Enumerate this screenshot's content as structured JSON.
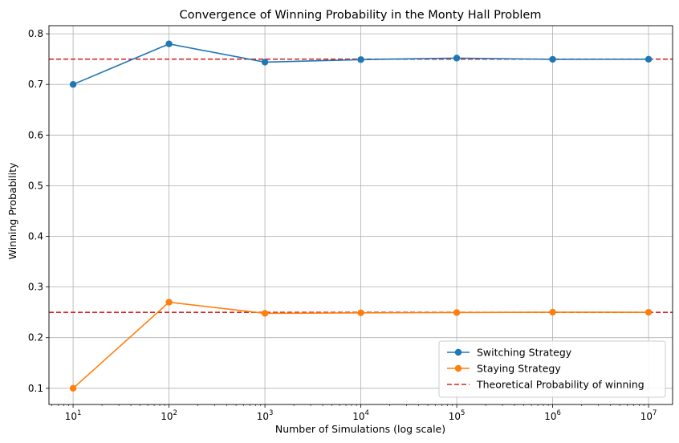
{
  "chart_data": {
    "type": "line",
    "title": "Convergence of Winning Probability in the Monty Hall Problem",
    "xlabel": "Number of Simulations (log scale)",
    "ylabel": "Winning Probability",
    "xscale": "log",
    "xlim": [
      5.6,
      17800000
    ],
    "ylim": [
      0.068,
      0.816
    ],
    "x": [
      10,
      100,
      1000,
      10000,
      100000,
      1000000,
      10000000
    ],
    "xtick_labels": [
      {
        "base": "10",
        "exp": "1"
      },
      {
        "base": "10",
        "exp": "2"
      },
      {
        "base": "10",
        "exp": "3"
      },
      {
        "base": "10",
        "exp": "4"
      },
      {
        "base": "10",
        "exp": "5"
      },
      {
        "base": "10",
        "exp": "6"
      },
      {
        "base": "10",
        "exp": "7"
      }
    ],
    "yticks": [
      0.1,
      0.2,
      0.3,
      0.4,
      0.5,
      0.6,
      0.7,
      0.8
    ],
    "ytick_labels": [
      "0.1",
      "0.2",
      "0.3",
      "0.4",
      "0.5",
      "0.6",
      "0.7",
      "0.8"
    ],
    "series": [
      {
        "name": "Switching Strategy",
        "color": "#1f77b4",
        "values": [
          0.7,
          0.78,
          0.744,
          0.749,
          0.752,
          0.7495,
          0.7497
        ]
      },
      {
        "name": "Staying Strategy",
        "color": "#ff7f0e",
        "values": [
          0.1,
          0.27,
          0.248,
          0.249,
          0.2495,
          0.2502,
          0.25
        ]
      }
    ],
    "reference_lines": [
      {
        "name": "Theoretical Probability of winning",
        "y": 0.75,
        "color": "#d62728",
        "style": "dashed"
      },
      {
        "name": "Theoretical Probability of winning",
        "y": 0.25,
        "color": "#d62728",
        "style": "dashed",
        "show_in_legend": false
      }
    ],
    "grid": true,
    "legend_position": "lower-right"
  }
}
